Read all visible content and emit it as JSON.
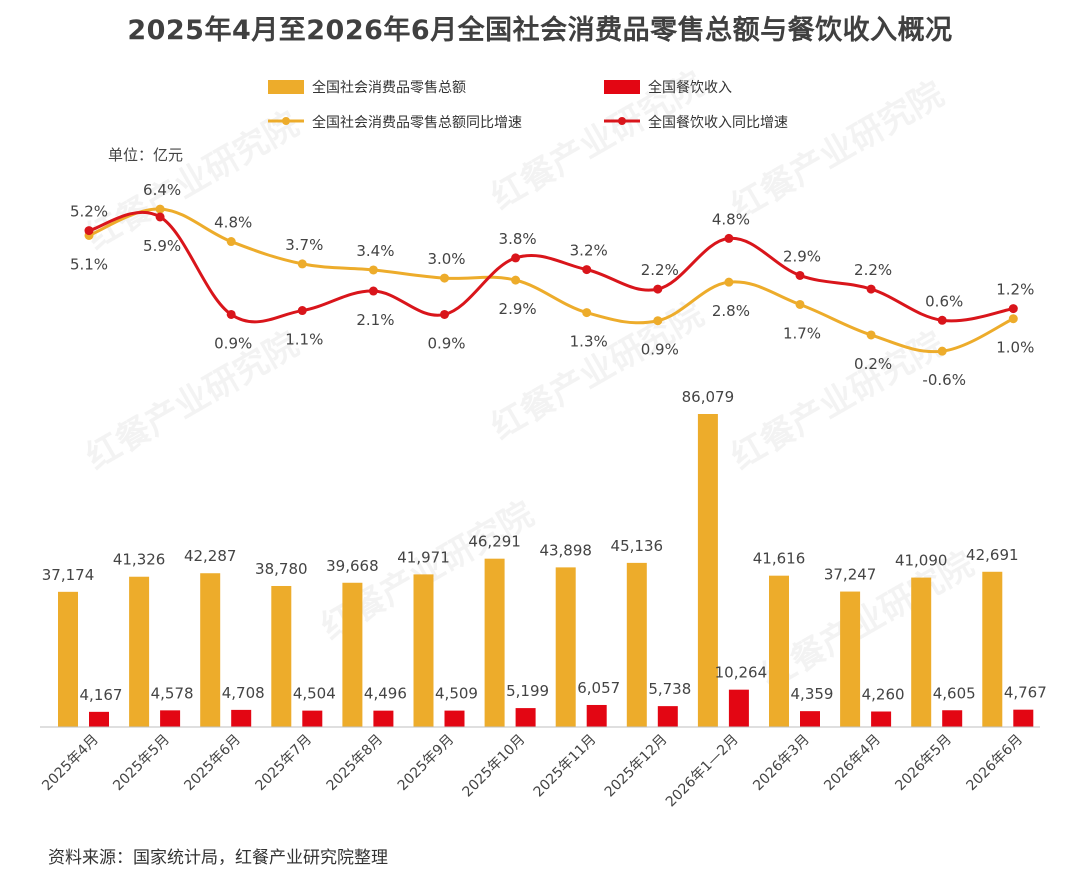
{
  "title": "2025年4月至2026年6月全国社会消费品零售总额与餐饮收入概况",
  "unit_label": "单位：亿元",
  "source": "资料来源：国家统计局，红餐产业研究院整理",
  "watermark": "红餐产业研究院",
  "colors": {
    "retail": "#EDAC2B",
    "catering": "#E30613",
    "retail_line": "#EDAC2B",
    "catering_line": "#D9151B",
    "axis": "#bfbfbf"
  },
  "chart_data": {
    "type": "bar",
    "categories": [
      "2025年4月",
      "2025年5月",
      "2025年6月",
      "2025年7月",
      "2025年8月",
      "2025年9月",
      "2025年10月",
      "2025年11月",
      "2025年12月",
      "2026年1—2月",
      "2026年3月",
      "2026年4月",
      "2026年5月",
      "2026年6月"
    ],
    "series": [
      {
        "name": "全国社会消费品零售总额",
        "kind": "bar",
        "values": [
          37174,
          41326,
          42287,
          38780,
          39668,
          41971,
          46291,
          43898,
          45136,
          86079,
          41616,
          37247,
          41090,
          42691
        ],
        "labels": [
          "37,174",
          "41,326",
          "42,287",
          "38,780",
          "39,668",
          "41,971",
          "46,291",
          "43,898",
          "45,136",
          "86,079",
          "41,616",
          "37,247",
          "41,090",
          "42,691"
        ]
      },
      {
        "name": "全国餐饮收入",
        "kind": "bar",
        "values": [
          4167,
          4578,
          4708,
          4504,
          4496,
          4509,
          5199,
          6057,
          5738,
          10264,
          4359,
          4260,
          4605,
          4767
        ],
        "labels": [
          "4,167",
          "4,578",
          "4,708",
          "4,504",
          "4,496",
          "4,509",
          "5,199",
          "6,057",
          "5,738",
          "10,264",
          "4,359",
          "4,260",
          "4,605",
          "4,767"
        ]
      },
      {
        "name": "全国社会消费品零售总额同比增速",
        "kind": "line",
        "values": [
          5.1,
          6.4,
          4.8,
          3.7,
          3.4,
          3.0,
          2.9,
          1.3,
          0.9,
          2.8,
          1.7,
          0.2,
          -0.6,
          1.0
        ],
        "labels": [
          "5.1%",
          "6.4%",
          "4.8%",
          "3.7%",
          "3.4%",
          "3.0%",
          "2.9%",
          "1.3%",
          "0.9%",
          "2.8%",
          "1.7%",
          "0.2%",
          "-0.6%",
          "1.0%"
        ]
      },
      {
        "name": "全国餐饮收入同比增速",
        "kind": "line",
        "values": [
          5.2,
          5.9,
          0.9,
          1.1,
          2.1,
          0.9,
          3.8,
          3.2,
          2.2,
          4.8,
          2.9,
          2.2,
          0.6,
          1.2
        ],
        "labels": [
          "5.2%",
          "5.9%",
          "0.9%",
          "1.1%",
          "2.1%",
          "0.9%",
          "3.8%",
          "3.2%",
          "2.2%",
          "4.8%",
          "2.9%",
          "2.2%",
          "0.6%",
          "1.2%"
        ]
      }
    ],
    "legend_position": "top",
    "grid": false
  }
}
